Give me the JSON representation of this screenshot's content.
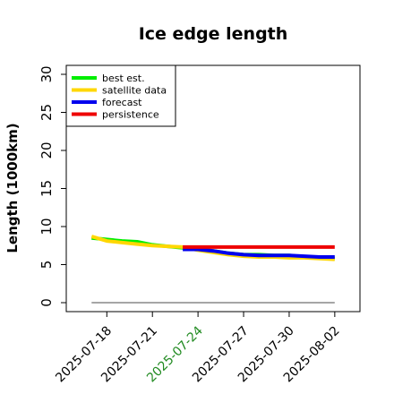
{
  "chart_data": {
    "type": "line",
    "title": "Ice edge length",
    "ylabel": "Length (1000km)",
    "xlabel": "",
    "ylim": [
      0,
      32
    ],
    "yticks": [
      0,
      5,
      10,
      15,
      20,
      25,
      30
    ],
    "xlim": [
      "2025-07-15",
      "2025-08-03"
    ],
    "xticks": [
      "2025-07-18",
      "2025-07-21",
      "2025-07-24",
      "2025-07-27",
      "2025-07-30",
      "2025-08-02"
    ],
    "highlighted_xtick": "2025-07-24",
    "highlight_color": "#228B22",
    "legend_position": "top-left",
    "grid": false,
    "series": [
      {
        "name": "best est.",
        "color": "#00ee00",
        "points": [
          [
            "2025-07-17",
            8.5
          ],
          [
            "2025-07-19",
            8.1
          ],
          [
            "2025-07-20",
            8.0
          ],
          [
            "2025-07-21",
            7.6
          ],
          [
            "2025-07-22",
            7.4
          ],
          [
            "2025-07-23",
            7.2
          ],
          [
            "2025-07-24",
            7.1
          ],
          [
            "2025-07-25",
            6.8
          ],
          [
            "2025-07-26",
            6.5
          ],
          [
            "2025-07-27",
            6.3
          ],
          [
            "2025-07-28",
            6.3
          ],
          [
            "2025-07-29",
            6.2
          ],
          [
            "2025-07-30",
            6.2
          ],
          [
            "2025-07-31",
            6.0
          ],
          [
            "2025-08-01",
            5.9
          ],
          [
            "2025-08-02",
            5.8
          ]
        ]
      },
      {
        "name": "satellite data",
        "color": "#ffd700",
        "points": [
          [
            "2025-07-17",
            8.7
          ],
          [
            "2025-07-18",
            8.1
          ],
          [
            "2025-07-19",
            7.9
          ],
          [
            "2025-07-20",
            7.7
          ],
          [
            "2025-07-21",
            7.5
          ],
          [
            "2025-07-22",
            7.4
          ],
          [
            "2025-07-23",
            7.3
          ],
          [
            "2025-07-24",
            6.9
          ],
          [
            "2025-07-25",
            6.6
          ],
          [
            "2025-07-26",
            6.3
          ],
          [
            "2025-07-27",
            6.1
          ],
          [
            "2025-07-28",
            6.0
          ],
          [
            "2025-07-29",
            6.0
          ],
          [
            "2025-07-30",
            5.9
          ],
          [
            "2025-07-31",
            5.9
          ],
          [
            "2025-08-01",
            5.8
          ],
          [
            "2025-08-02",
            5.7
          ]
        ]
      },
      {
        "name": "forecast",
        "color": "#0000ee",
        "points": [
          [
            "2025-07-23",
            7.0
          ],
          [
            "2025-07-24",
            7.0
          ],
          [
            "2025-07-25",
            6.8
          ],
          [
            "2025-07-26",
            6.5
          ],
          [
            "2025-07-27",
            6.3
          ],
          [
            "2025-07-28",
            6.2
          ],
          [
            "2025-07-29",
            6.2
          ],
          [
            "2025-07-30",
            6.2
          ],
          [
            "2025-07-31",
            6.1
          ],
          [
            "2025-08-01",
            6.0
          ],
          [
            "2025-08-02",
            6.0
          ]
        ]
      },
      {
        "name": "persistence",
        "color": "#ee0000",
        "points": [
          [
            "2025-07-23",
            7.3
          ],
          [
            "2025-08-02",
            7.3
          ]
        ]
      }
    ],
    "baseline": {
      "color": "#888888",
      "points": [
        [
          "2025-07-17",
          0
        ],
        [
          "2025-08-02",
          0
        ]
      ]
    }
  }
}
